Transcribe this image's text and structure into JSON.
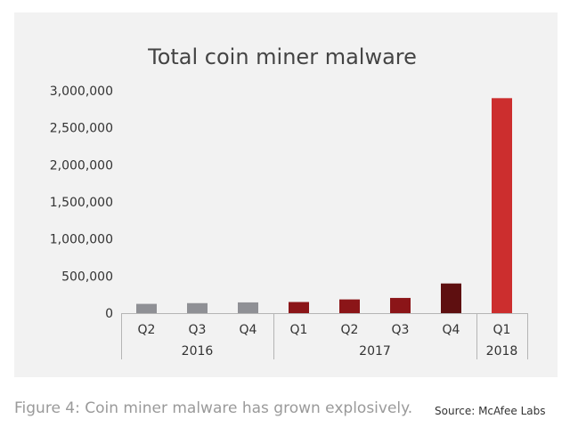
{
  "chart_data": {
    "type": "bar",
    "title": "Total coin miner malware",
    "xlabel": "",
    "ylabel": "",
    "ylim": [
      0,
      3000000
    ],
    "yticks": [
      0,
      500000,
      1000000,
      1500000,
      2000000,
      2500000,
      3000000
    ],
    "ytick_labels": [
      "0",
      "500,000",
      "1,000,000",
      "1,500,000",
      "2,000,000",
      "2,500,000",
      "3,000,000"
    ],
    "categories": [
      "Q2",
      "Q3",
      "Q4",
      "Q1",
      "Q2",
      "Q3",
      "Q4",
      "Q1"
    ],
    "groups": [
      {
        "label": "2016",
        "count": 3
      },
      {
        "label": "2017",
        "count": 4
      },
      {
        "label": "2018",
        "count": 1
      }
    ],
    "values": [
      125000,
      135000,
      145000,
      150000,
      185000,
      205000,
      400000,
      2900000
    ],
    "bar_colors": [
      "#8f9095",
      "#8f9095",
      "#8f9095",
      "#8b1518",
      "#8b1518",
      "#8b1518",
      "#5e0f10",
      "#cc2e2e"
    ],
    "grid": false,
    "legend": "none"
  },
  "figure": {
    "caption": "Figure 4: Coin miner malware has grown explosively.",
    "source": "Source: McAfee Labs"
  }
}
